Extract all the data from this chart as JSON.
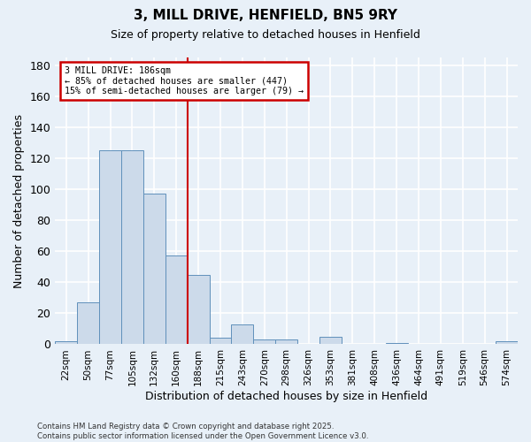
{
  "title1": "3, MILL DRIVE, HENFIELD, BN5 9RY",
  "title2": "Size of property relative to detached houses in Henfield",
  "xlabel": "Distribution of detached houses by size in Henfield",
  "ylabel": "Number of detached properties",
  "footnote1": "Contains HM Land Registry data © Crown copyright and database right 2025.",
  "footnote2": "Contains public sector information licensed under the Open Government Licence v3.0.",
  "bar_labels": [
    "22sqm",
    "50sqm",
    "77sqm",
    "105sqm",
    "132sqm",
    "160sqm",
    "188sqm",
    "215sqm",
    "243sqm",
    "270sqm",
    "298sqm",
    "326sqm",
    "353sqm",
    "381sqm",
    "408sqm",
    "436sqm",
    "464sqm",
    "491sqm",
    "519sqm",
    "546sqm",
    "574sqm"
  ],
  "bar_values": [
    2,
    27,
    125,
    125,
    97,
    57,
    45,
    4,
    13,
    3,
    3,
    0,
    5,
    0,
    0,
    1,
    0,
    0,
    0,
    0,
    2
  ],
  "bar_color": "#ccdaea",
  "bar_edge_color": "#6090bb",
  "background_color": "#e8f0f8",
  "grid_color": "#ffffff",
  "property_line_bin": 6,
  "annotation_line1": "3 MILL DRIVE: 186sqm",
  "annotation_line2": "← 85% of detached houses are smaller (447)",
  "annotation_line3": "15% of semi-detached houses are larger (79) →",
  "annotation_box_color": "#ffffff",
  "annotation_border_color": "#cc0000",
  "red_line_color": "#cc0000",
  "ylim": [
    0,
    185
  ],
  "yticks": [
    0,
    20,
    40,
    60,
    80,
    100,
    120,
    140,
    160,
    180
  ]
}
